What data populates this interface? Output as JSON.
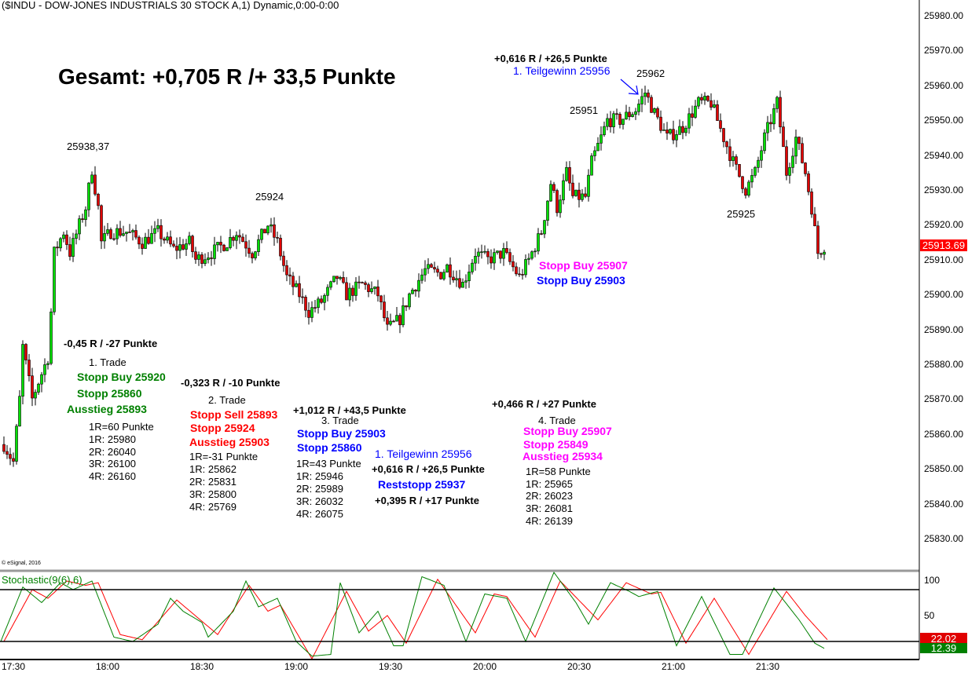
{
  "header": {
    "title": "($INDU - DOW-JONES INDUSTRIALS 30 STOCK A,1) Dynamic,0:00-0:00",
    "copyright": "© eSignal, 2016"
  },
  "summary": "Gesamt: +0,705 R /+ 33,5 Punkte",
  "price_labels": {
    "p1": "25938,37",
    "p2": "25924",
    "p3": "25951",
    "p4": "25962",
    "p5": "25925"
  },
  "top_note": {
    "result": "+0,616 R / +26,5 Punkte",
    "target": "1. Teilgewinn 25956"
  },
  "right_note": {
    "stop_buy_4": "Stopp Buy 25907",
    "stop_buy_3": "Stopp Buy 25903"
  },
  "trade1": {
    "result": "-0,45 R / -27 Punkte",
    "name": "1. Trade",
    "entry": "Stopp Buy 25920",
    "stop": "Stopp 25860",
    "exit": "Ausstieg 25893",
    "r": "1R=60 Punkte",
    "r1": "1R: 25980",
    "r2": "2R: 26040",
    "r3": "3R: 26100",
    "r4": "4R: 26160"
  },
  "trade2": {
    "result": "-0,323 R / -10 Punkte",
    "name": "2. Trade",
    "entry": "Stopp Sell 25893",
    "stop": "Stopp 25924",
    "exit": "Ausstieg 25903",
    "r": "1R=-31 Punkte",
    "r1": "1R: 25862",
    "r2": "2R: 25831",
    "r3": "3R: 25800",
    "r4": "4R: 25769"
  },
  "trade3": {
    "result": "+1,012 R / +43,5 Punkte",
    "name": "3. Trade",
    "entry": "Stopp Buy 25903",
    "stop": "Stopp 25860",
    "r": "1R=43 Punkte",
    "r1": "1R: 25946",
    "r2": "2R: 25989",
    "r3": "3R: 26032",
    "r4": "4R: 26075",
    "partial": "1. Teilgewinn 25956",
    "partial_result": "+0,616 R / +26,5 Punkte",
    "rest_stop": "Reststopp 25937",
    "rest_result": "+0,395 R / +17 Punkte"
  },
  "trade4": {
    "result": "+0,466 R / +27 Punkte",
    "name": "4. Trade",
    "entry": "Stopp Buy 25907",
    "stop": "Stopp 25849",
    "exit": "Ausstieg 25934",
    "r": "1R=58 Punkte",
    "r1": "1R: 25965",
    "r2": "2R: 26023",
    "r3": "3R: 26081",
    "r4": "4R: 26139"
  },
  "colors": {
    "up": "#00e000",
    "down": "#e00000",
    "stoch_k": "#008000",
    "stoch_d": "#ff0000",
    "last_price": "#ff0000"
  },
  "chart_data": {
    "type": "candlestick",
    "symbol": "$INDU",
    "interval_minutes": 1,
    "ylim": [
      25830,
      25980
    ],
    "y_ticks": [
      "25980.00",
      "25970.00",
      "25960.00",
      "25950.00",
      "25940.00",
      "25930.00",
      "25920.00",
      "25910.00",
      "25900.00",
      "25890.00",
      "25880.00",
      "25870.00",
      "25860.00",
      "25850.00",
      "25840.00",
      "25830.00"
    ],
    "x_ticks": [
      "17:30",
      "18:00",
      "18:30",
      "19:00",
      "19:30",
      "20:00",
      "20:30",
      "21:00",
      "21:30"
    ],
    "last_price": "25913.69",
    "close_path_minutes_after_1730": [
      [
        -3,
        25857
      ],
      [
        0,
        25852
      ],
      [
        2,
        25870
      ],
      [
        3,
        25885
      ],
      [
        6,
        25870
      ],
      [
        8,
        25875
      ],
      [
        11,
        25882
      ],
      [
        12,
        25895
      ],
      [
        13,
        25912
      ],
      [
        16,
        25918
      ],
      [
        18,
        25912
      ],
      [
        21,
        25920
      ],
      [
        23,
        25925
      ],
      [
        25,
        25936
      ],
      [
        27,
        25925
      ],
      [
        28,
        25915
      ],
      [
        31,
        25918
      ],
      [
        36,
        25918
      ],
      [
        41,
        25915
      ],
      [
        46,
        25918
      ],
      [
        51,
        25913
      ],
      [
        56,
        25915
      ],
      [
        58,
        25910
      ],
      [
        63,
        25912
      ],
      [
        68,
        25915
      ],
      [
        71,
        25918
      ],
      [
        76,
        25912
      ],
      [
        81,
        25920
      ],
      [
        84,
        25915
      ],
      [
        87,
        25905
      ],
      [
        91,
        25900
      ],
      [
        94,
        25895
      ],
      [
        98,
        25898
      ],
      [
        103,
        25905
      ],
      [
        106,
        25900
      ],
      [
        111,
        25903
      ],
      [
        116,
        25900
      ],
      [
        119,
        25890
      ],
      [
        123,
        25893
      ],
      [
        126,
        25900
      ],
      [
        131,
        25907
      ],
      [
        136,
        25906
      ],
      [
        138,
        25908
      ],
      [
        143,
        25903
      ],
      [
        147,
        25912
      ],
      [
        151,
        25910
      ],
      [
        156,
        25912
      ],
      [
        161,
        25905
      ],
      [
        164,
        25910
      ],
      [
        168,
        25918
      ],
      [
        171,
        25932
      ],
      [
        173,
        25925
      ],
      [
        176,
        25935
      ],
      [
        178,
        25928
      ],
      [
        182,
        25928
      ],
      [
        184,
        25938
      ],
      [
        187,
        25945
      ],
      [
        189,
        25950
      ],
      [
        193,
        25950
      ],
      [
        198,
        25953
      ],
      [
        201,
        25958
      ],
      [
        204,
        25952
      ],
      [
        208,
        25945
      ],
      [
        213,
        25948
      ],
      [
        218,
        25955
      ],
      [
        222,
        25955
      ],
      [
        226,
        25945
      ],
      [
        229,
        25938
      ],
      [
        233,
        25930
      ],
      [
        236,
        25935
      ],
      [
        239,
        25945
      ],
      [
        243,
        25955
      ],
      [
        246,
        25935
      ],
      [
        249,
        25945
      ],
      [
        252,
        25935
      ],
      [
        254,
        25925
      ],
      [
        256,
        25912
      ],
      [
        258,
        25914
      ]
    ],
    "stochastic": {
      "label": "Stochastic(9(6),6)",
      "ylim": [
        0,
        100
      ],
      "levels": [
        20,
        80
      ],
      "y_ticks": [
        "100",
        "50"
      ],
      "last_d": "22.02",
      "last_k": "12.39",
      "k": [
        [
          -4,
          20
        ],
        [
          3,
          83
        ],
        [
          9,
          65
        ],
        [
          15,
          88
        ],
        [
          19,
          80
        ],
        [
          25,
          90
        ],
        [
          32,
          25
        ],
        [
          38,
          20
        ],
        [
          46,
          40
        ],
        [
          50,
          70
        ],
        [
          54,
          55
        ],
        [
          60,
          42
        ],
        [
          62,
          25
        ],
        [
          70,
          55
        ],
        [
          74,
          90
        ],
        [
          78,
          60
        ],
        [
          84,
          70
        ],
        [
          90,
          20
        ],
        [
          95,
          3
        ],
        [
          101,
          5
        ],
        [
          104,
          88
        ],
        [
          110,
          30
        ],
        [
          116,
          55
        ],
        [
          121,
          15
        ],
        [
          124,
          15
        ],
        [
          130,
          95
        ],
        [
          137,
          85
        ],
        [
          144,
          20
        ],
        [
          150,
          75
        ],
        [
          157,
          70
        ],
        [
          163,
          20
        ],
        [
          172,
          100
        ],
        [
          179,
          65
        ],
        [
          183,
          40
        ],
        [
          190,
          88
        ],
        [
          196,
          78
        ],
        [
          199,
          72
        ],
        [
          205,
          78
        ],
        [
          211,
          15
        ],
        [
          219,
          72
        ],
        [
          228,
          5
        ],
        [
          232,
          5
        ],
        [
          242,
          82
        ],
        [
          250,
          45
        ],
        [
          255,
          18
        ],
        [
          258,
          12
        ]
      ],
      "d": [
        [
          -3,
          20
        ],
        [
          6,
          80
        ],
        [
          11,
          70
        ],
        [
          17,
          90
        ],
        [
          23,
          85
        ],
        [
          27,
          88
        ],
        [
          34,
          28
        ],
        [
          41,
          22
        ],
        [
          52,
          68
        ],
        [
          65,
          28
        ],
        [
          75,
          85
        ],
        [
          81,
          55
        ],
        [
          85,
          62
        ],
        [
          95,
          0
        ],
        [
          106,
          78
        ],
        [
          113,
          32
        ],
        [
          119,
          50
        ],
        [
          125,
          18
        ],
        [
          135,
          92
        ],
        [
          147,
          30
        ],
        [
          153,
          75
        ],
        [
          157,
          72
        ],
        [
          166,
          25
        ],
        [
          174,
          90
        ],
        [
          186,
          45
        ],
        [
          195,
          88
        ],
        [
          203,
          75
        ],
        [
          206,
          77
        ],
        [
          214,
          18
        ],
        [
          223,
          70
        ],
        [
          234,
          5
        ],
        [
          246,
          78
        ],
        [
          252,
          50
        ],
        [
          259,
          22
        ]
      ]
    }
  }
}
